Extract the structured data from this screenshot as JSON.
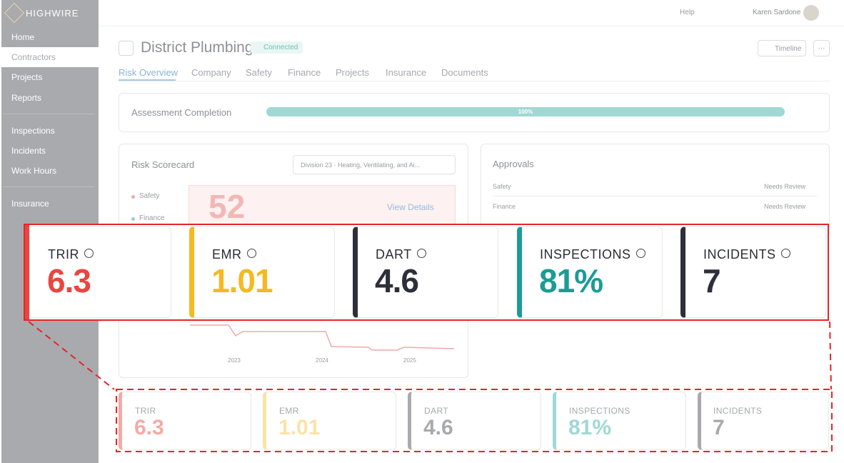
{
  "sidebar": {
    "brand": "HIGHWIRE",
    "nav": [
      "Home",
      "Contractors",
      "Projects",
      "Reports",
      "Inspections",
      "Incidents",
      "Work Hours",
      "Insurance"
    ]
  },
  "header": {
    "help": "Help",
    "user": "Karen Sardone"
  },
  "page": {
    "title": "District Plumbing",
    "status": "Connected",
    "timeline": "Timeline",
    "more": "···",
    "tabs": [
      "Risk Overview",
      "Company",
      "Safety",
      "Finance",
      "Projects",
      "Insurance",
      "Documents"
    ]
  },
  "assessment": {
    "label": "Assessment Completion",
    "progress": "100%"
  },
  "scorecard": {
    "title": "Risk Scorecard",
    "division": "Division 23 · Heating, Ventilating, and Ai...",
    "legend": [
      "Safety",
      "Finance"
    ],
    "score": "52",
    "link": "View Details",
    "years": [
      "2023",
      "2024",
      "2025"
    ]
  },
  "approvals": {
    "title": "Approvals",
    "rows": [
      {
        "label": "Safety",
        "status": "Needs Review"
      },
      {
        "label": "Finance",
        "status": "Needs Review"
      }
    ]
  },
  "kpis": [
    {
      "label": "TRIR",
      "value": "6.3"
    },
    {
      "label": "EMR",
      "value": "1.01"
    },
    {
      "label": "DART",
      "value": "4.6"
    },
    {
      "label": "INSPECTIONS",
      "value": "81%"
    },
    {
      "label": "INCIDENTS",
      "value": "7"
    }
  ]
}
